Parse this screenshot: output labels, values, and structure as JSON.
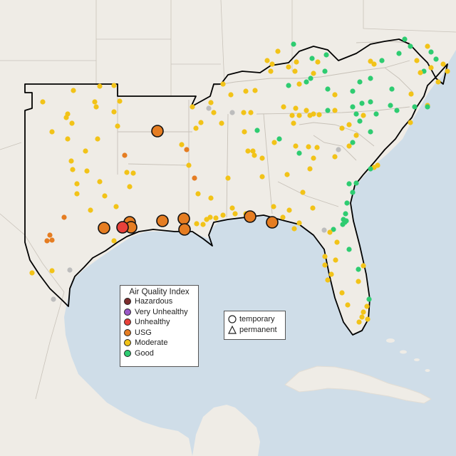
{
  "legend": {
    "title": "Air Quality Index",
    "categories": [
      {
        "label": "Hazardous",
        "color": "#7e2e2e"
      },
      {
        "label": "Very Unhealthy",
        "color": "#9b59c7"
      },
      {
        "label": "Unhealthy",
        "color": "#e8413a"
      },
      {
        "label": "USG",
        "color": "#e57d22"
      },
      {
        "label": "Moderate",
        "color": "#f2c318"
      },
      {
        "label": "Good",
        "color": "#2ecc71"
      }
    ]
  },
  "monitor_legend": {
    "temporary": "temporary",
    "permanent": "permanent"
  },
  "colors": {
    "ocean": "#cfdde8",
    "land": "#f0ede8",
    "focus_region": "#f4f1ec",
    "no_data": "#bdbdbd"
  }
}
